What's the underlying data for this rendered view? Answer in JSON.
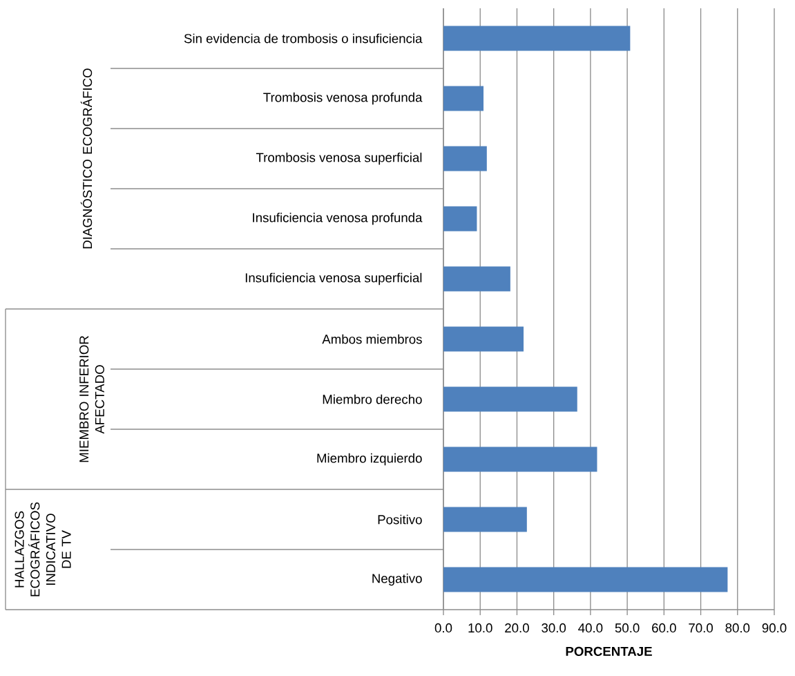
{
  "chart_data": {
    "type": "bar",
    "orientation": "horizontal",
    "xlabel": "PORCENTAJE",
    "categories": [
      "Sin evidencia de trombosis o insuficiencia",
      "Trombosis venosa profunda",
      "Trombosis venosa superficial",
      "Insuficiencia venosa profunda",
      "Insuficiencia venosa superficial",
      "Ambos miembros",
      "Miembro derecho",
      "Miembro izquierdo",
      "Positivo",
      "Negativo"
    ],
    "values": [
      50.8,
      10.9,
      11.8,
      9.1,
      18.2,
      21.8,
      36.4,
      41.8,
      22.7,
      77.3
    ],
    "color": "#4f81bd",
    "xlim": [
      0,
      90
    ],
    "xticks": [
      {
        "value": 0,
        "label": "0.0"
      },
      {
        "value": 10,
        "label": "10.0"
      },
      {
        "value": 20,
        "label": "20.0"
      },
      {
        "value": 30,
        "label": "30.0"
      },
      {
        "value": 40,
        "label": "40.0"
      },
      {
        "value": 50,
        "label": "50.0"
      },
      {
        "value": 60,
        "label": "60.0"
      },
      {
        "value": 70,
        "label": "70.0"
      },
      {
        "value": 80,
        "label": "80.0"
      },
      {
        "value": 90,
        "label": "90.0"
      }
    ],
    "grid": "x",
    "annotations": [
      "DIAGNÓSTICO ECOGRÁFICO",
      "MIEMBRO INFERIOR AFECTADO",
      "HALLAZGOS ECOGRÁFICOS INDICATIVO DE TV"
    ]
  }
}
